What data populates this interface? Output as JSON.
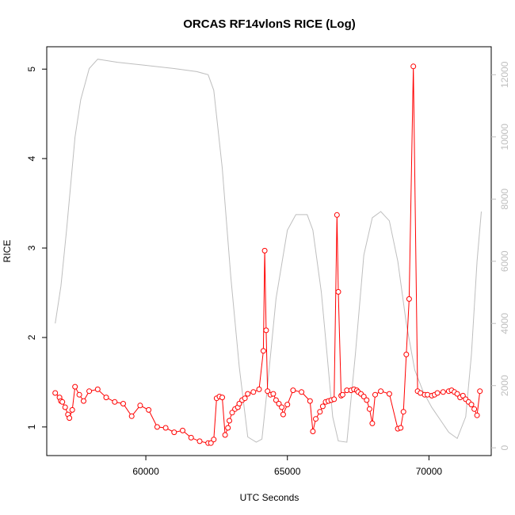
{
  "chart_data": {
    "type": "line",
    "title": "ORCAS RF14vlonS RICE (Log)",
    "xlabel": "UTC Seconds",
    "ylabel": "RICE",
    "y2label": "",
    "xlim": [
      56500,
      72200
    ],
    "ylim": [
      0.68,
      5.25
    ],
    "y2lim": [
      -250,
      12900
    ],
    "x_ticks": [
      60000,
      65000,
      70000
    ],
    "y_ticks": [
      1,
      2,
      3,
      4,
      5
    ],
    "y2_ticks": [
      0,
      2000,
      4000,
      6000,
      8000,
      10000,
      12000
    ],
    "colors": {
      "rice": "#ff0000",
      "altitude": "#bebebe"
    },
    "series": [
      {
        "axis": "left",
        "style": "points-lines",
        "x": [
          56800,
          56950,
          57000,
          57050,
          57150,
          57250,
          57300,
          57400,
          57500,
          57650,
          57800,
          58000,
          58300,
          58600,
          58900,
          59200,
          59500,
          59800,
          60100,
          60400,
          60700,
          61000,
          61300,
          61600,
          61900,
          62200,
          62300,
          62400,
          62500,
          62600,
          62700,
          62800,
          62900,
          62950,
          63050,
          63150,
          63250,
          63300,
          63400,
          63500,
          63600,
          63800,
          64000,
          64150,
          64200,
          64250,
          64300,
          64400,
          64500,
          64600,
          64700,
          64800,
          64850,
          65000,
          65200,
          65500,
          65800,
          65900,
          66000,
          66150,
          66250,
          66350,
          66450,
          66550,
          66650,
          66750,
          66800,
          66900,
          66950,
          67100,
          67250,
          67350,
          67450,
          67500,
          67600,
          67700,
          67800,
          67900,
          68000,
          68100,
          68300,
          68600,
          68900,
          69000,
          69100,
          69200,
          69300,
          69450,
          69600,
          69700,
          69850,
          69950,
          70100,
          70200,
          70300,
          70500,
          70700,
          70800,
          70900,
          71000,
          71100,
          71200,
          71300,
          71400,
          71500,
          71600,
          71700,
          71800
        ],
        "y": [
          1.38,
          1.33,
          1.29,
          1.28,
          1.22,
          1.14,
          1.1,
          1.19,
          1.45,
          1.36,
          1.29,
          1.4,
          1.42,
          1.33,
          1.28,
          1.26,
          1.12,
          1.24,
          1.19,
          1.0,
          0.99,
          0.94,
          0.96,
          0.88,
          0.84,
          0.82,
          0.82,
          0.86,
          1.32,
          1.34,
          1.33,
          0.91,
          0.99,
          1.07,
          1.16,
          1.2,
          1.22,
          1.26,
          1.3,
          1.32,
          1.37,
          1.39,
          1.42,
          1.85,
          2.97,
          2.08,
          1.4,
          1.36,
          1.37,
          1.3,
          1.26,
          1.22,
          1.14,
          1.25,
          1.41,
          1.39,
          1.29,
          0.95,
          1.09,
          1.17,
          1.23,
          1.28,
          1.29,
          1.3,
          1.31,
          3.37,
          2.51,
          1.35,
          1.36,
          1.41,
          1.41,
          1.42,
          1.41,
          1.39,
          1.37,
          1.34,
          1.3,
          1.2,
          1.04,
          1.36,
          1.4,
          1.37,
          0.98,
          0.99,
          1.17,
          1.81,
          2.43,
          5.03,
          1.4,
          1.38,
          1.36,
          1.36,
          1.35,
          1.36,
          1.38,
          1.39,
          1.4,
          1.41,
          1.39,
          1.37,
          1.33,
          1.35,
          1.31,
          1.28,
          1.25,
          1.2,
          1.13,
          1.4
        ]
      },
      {
        "axis": "right",
        "style": "line",
        "x": [
          56800,
          57000,
          57200,
          57500,
          57700,
          58000,
          58300,
          59000,
          60000,
          61000,
          61800,
          62200,
          62400,
          62700,
          63000,
          63300,
          63600,
          63900,
          64100,
          64300,
          64600,
          65000,
          65300,
          65700,
          65900,
          66200,
          66400,
          66600,
          66800,
          67100,
          67400,
          67700,
          68000,
          68300,
          68600,
          68900,
          69200,
          69500,
          69800,
          70100,
          70400,
          70700,
          71000,
          71300,
          71500,
          71700,
          71850
        ],
        "y": [
          4000,
          5200,
          7000,
          10000,
          11200,
          12200,
          12500,
          12400,
          12300,
          12200,
          12100,
          12000,
          11500,
          9000,
          5500,
          2600,
          350,
          180,
          280,
          2000,
          4800,
          7000,
          7500,
          7500,
          7000,
          5000,
          3000,
          1000,
          220,
          180,
          3000,
          6200,
          7400,
          7600,
          7300,
          6000,
          4000,
          2500,
          1800,
          1300,
          900,
          500,
          300,
          1000,
          3000,
          6000,
          7600
        ]
      }
    ]
  }
}
